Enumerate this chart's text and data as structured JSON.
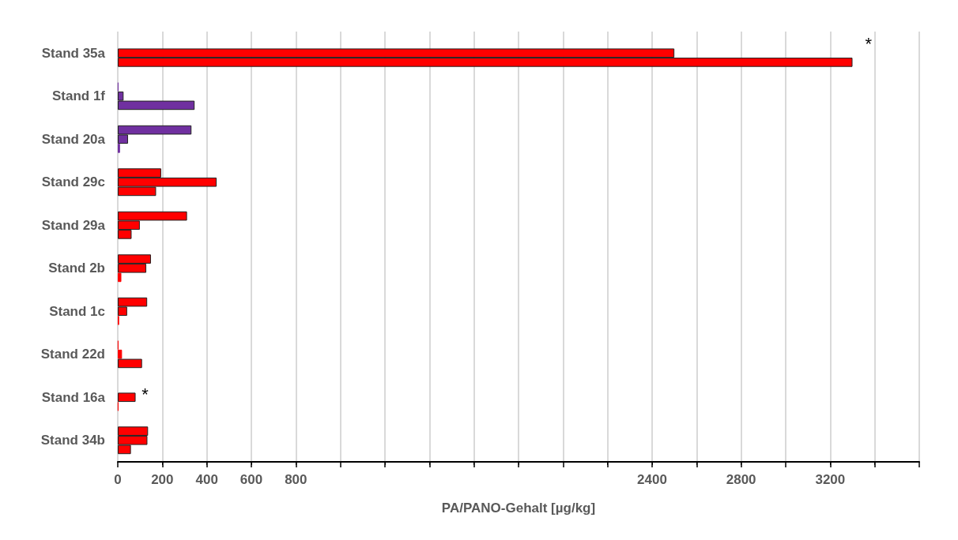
{
  "chart_data": {
    "type": "bar",
    "orientation": "horizontal",
    "xlabel": "PA/PANO-Gehalt [µg/kg]",
    "categories": [
      "Stand 35a",
      "Stand 1f",
      "Stand 20a",
      "Stand 29c",
      "Stand 29a",
      "Stand 2b",
      "Stand 1c",
      "Stand 22d",
      "Stand 16a",
      "Stand 34b"
    ],
    "series": [
      {
        "values": [
          null,
          3,
          331,
          195,
          311,
          149,
          132,
          3,
          null,
          136
        ],
        "colors": [
          "#ff0000",
          "#7030a0",
          "#7030a0",
          "#ff0000",
          "#ff0000",
          "#ff0000",
          "#ff0000",
          "#ff0000",
          "#ff0000",
          "#ff0000"
        ]
      },
      {
        "values": [
          2500,
          26,
          46,
          444,
          99,
          128,
          42,
          19,
          80,
          133
        ],
        "colors": [
          "#ff0000",
          "#7030a0",
          "#7030a0",
          "#ff0000",
          "#ff0000",
          "#ff0000",
          "#ff0000",
          "#ff0000",
          "#ff0000",
          "#ff0000"
        ]
      },
      {
        "values": [
          3300,
          345,
          10,
          172,
          62,
          16,
          6,
          109,
          3,
          59
        ],
        "colors": [
          "#ff0000",
          "#7030a0",
          "#7030a0",
          "#ff0000",
          "#ff0000",
          "#ff0000",
          "#ff0000",
          "#ff0000",
          "#ff0000",
          "#ff0000"
        ]
      }
    ],
    "xlim": [
      0,
      3600
    ],
    "xticks": [
      0,
      200,
      400,
      600,
      800,
      {
        "value": 1000,
        "label": null
      },
      {
        "value": 1200,
        "label": null
      },
      {
        "value": 1400,
        "label": null
      },
      {
        "value": 1600,
        "label": null
      },
      {
        "value": 1800,
        "label": null
      },
      {
        "value": 2000,
        "label": null
      },
      {
        "value": 2200,
        "label": null
      },
      2400,
      {
        "value": 2600,
        "label": null
      },
      2800,
      {
        "value": 3000,
        "label": null
      },
      3200,
      {
        "value": 3400,
        "label": null
      },
      {
        "value": 3600,
        "label": null
      }
    ],
    "annotations": [
      "*",
      {
        "text": "*",
        "x": 80,
        "y": "Stand 16a"
      }
    ],
    "grid": "x"
  }
}
